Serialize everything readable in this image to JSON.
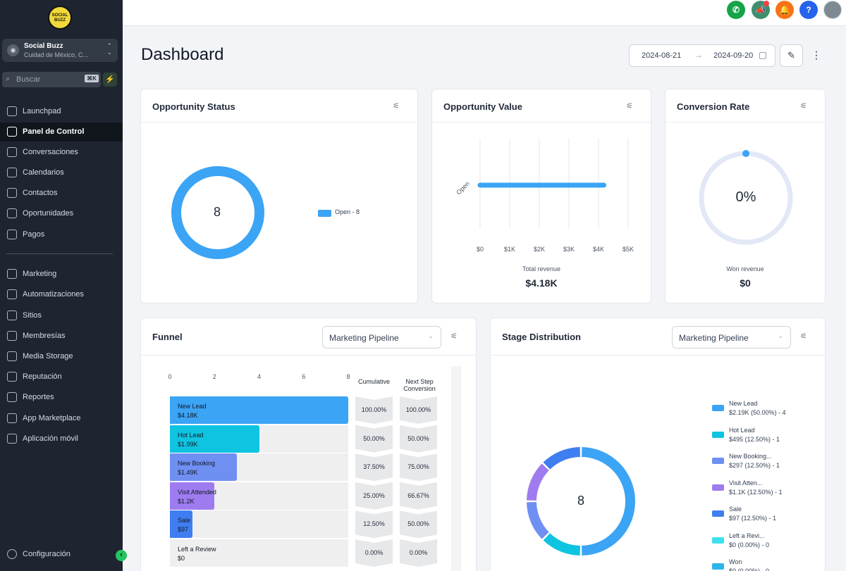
{
  "sidebar": {
    "logo_text": "SOCIAL BUZZ",
    "account": {
      "name": "Social Buzz",
      "location": "Cuidad de México, C..."
    },
    "search": {
      "placeholder": "Buscar",
      "shortcut": "⌘K"
    },
    "items": [
      {
        "label": "Launchpad",
        "icon": "rocket-icon"
      },
      {
        "label": "Panel de Control",
        "icon": "grid-icon",
        "active": true
      },
      {
        "label": "Conversaciones",
        "icon": "chat-icon"
      },
      {
        "label": "Calendarios",
        "icon": "calendar-icon"
      },
      {
        "label": "Contactos",
        "icon": "contacts-icon"
      },
      {
        "label": "Oportunidades",
        "icon": "opportunities-icon"
      },
      {
        "label": "Pagos",
        "icon": "payments-icon"
      },
      {
        "label": "Marketing",
        "icon": "send-icon"
      },
      {
        "label": "Automatizaciones",
        "icon": "automation-icon"
      },
      {
        "label": "Sitios",
        "icon": "sites-icon"
      },
      {
        "label": "Membresías",
        "icon": "membership-icon"
      },
      {
        "label": "Media Storage",
        "icon": "image-icon"
      },
      {
        "label": "Reputación",
        "icon": "star-icon"
      },
      {
        "label": "Reportes",
        "icon": "trend-icon"
      },
      {
        "label": "App Marketplace",
        "icon": "apps-icon"
      },
      {
        "label": "Aplicación móvil",
        "icon": "mobile-icon"
      }
    ],
    "settings_label": "Configuración"
  },
  "topbar": {
    "icons": [
      {
        "name": "phone-icon",
        "color": "#16a34a",
        "glyph": "✆"
      },
      {
        "name": "megaphone-icon",
        "color": "#3f8f6e",
        "glyph": "📣"
      },
      {
        "name": "bell-icon",
        "color": "#f97316",
        "glyph": "🔔"
      },
      {
        "name": "help-icon",
        "color": "#2563eb",
        "glyph": "?"
      }
    ]
  },
  "page": {
    "title": "Dashboard",
    "date_start": "2024-08-21",
    "date_end": "2024-09-20"
  },
  "opportunity_status": {
    "title": "Opportunity Status",
    "center_value": "8",
    "legend": "Open - 8",
    "color": "#3ba4f5"
  },
  "opportunity_value": {
    "title": "Opportunity Value",
    "category": "Open",
    "ticks": [
      "$0",
      "$1K",
      "$2K",
      "$3K",
      "$4K",
      "$5K"
    ],
    "caption": "Total revenue",
    "total": "$4.18K"
  },
  "conversion_rate": {
    "title": "Conversion Rate",
    "center_value": "0%",
    "caption": "Won revenue",
    "total": "$0"
  },
  "funnel": {
    "title": "Funnel",
    "pipeline": "Marketing Pipeline",
    "axis_ticks": [
      "0",
      "2",
      "4",
      "6",
      "8"
    ],
    "col_cumulative": "Cumulative",
    "col_next_line1": "Next Step",
    "col_next_line2": "Conversion",
    "rows": [
      {
        "name": "New Lead",
        "value": "$4.18K",
        "count": 8,
        "color": "#3ba4f5",
        "cumulative": "100.00%",
        "next": "100.00%"
      },
      {
        "name": "Hot Lead",
        "value": "$1.99K",
        "count": 4,
        "color": "#0fc4e0",
        "cumulative": "50.00%",
        "next": "50.00%"
      },
      {
        "name": "New Booking",
        "value": "$1.49K",
        "count": 3,
        "color": "#6f8ff2",
        "cumulative": "37.50%",
        "next": "75.00%"
      },
      {
        "name": "Visit Attended",
        "value": "$1.2K",
        "count": 2,
        "color": "#9e7cf0",
        "cumulative": "25.00%",
        "next": "66.67%"
      },
      {
        "name": "Sale",
        "value": "$97",
        "count": 1,
        "color": "#3f7ef0",
        "cumulative": "12.50%",
        "next": "50.00%"
      },
      {
        "name": "Left a Review",
        "value": "$0",
        "count": 0,
        "color": "#3ee0ee",
        "cumulative": "0.00%",
        "next": "0.00%"
      }
    ]
  },
  "stage_distribution": {
    "title": "Stage Distribution",
    "pipeline": "Marketing Pipeline",
    "center_value": "8",
    "legend": [
      {
        "name": "New Lead",
        "detail": "$2.19K (50.00%) - 4",
        "color": "#3ba4f5"
      },
      {
        "name": "Hot Lead",
        "detail": "$495 (12.50%) - 1",
        "color": "#0fc4e0"
      },
      {
        "name": "New Booking...",
        "detail": "$297 (12.50%) - 1",
        "color": "#6f8ff2"
      },
      {
        "name": "Visit Atten...",
        "detail": "$1.1K (12.50%) - 1",
        "color": "#9e7cf0"
      },
      {
        "name": "Sale",
        "detail": "$97 (12.50%) - 1",
        "color": "#3f7ef0"
      },
      {
        "name": "Left a Revi...",
        "detail": "$0 (0.00%) - 0",
        "color": "#3ee0ee"
      },
      {
        "name": "Won",
        "detail": "$0 (0.00%) - 0",
        "color": "#2bb6e8"
      }
    ]
  },
  "chart_data": [
    {
      "type": "pie",
      "title": "Opportunity Status",
      "labels": [
        "Open"
      ],
      "values": [
        8
      ]
    },
    {
      "type": "bar",
      "title": "Opportunity Value",
      "categories": [
        "Open"
      ],
      "values": [
        4180
      ],
      "xlim": [
        0,
        5000
      ],
      "xlabel": "Total revenue"
    },
    {
      "type": "bar",
      "title": "Funnel",
      "categories": [
        "New Lead",
        "Hot Lead",
        "New Booking",
        "Visit Attended",
        "Sale",
        "Left a Review"
      ],
      "values": [
        8,
        4,
        3,
        2,
        1,
        0
      ],
      "xlim": [
        0,
        8
      ]
    },
    {
      "type": "pie",
      "title": "Stage Distribution",
      "labels": [
        "New Lead",
        "Hot Lead",
        "New Booking...",
        "Visit Atten...",
        "Sale",
        "Left a Revi...",
        "Won"
      ],
      "values": [
        4,
        1,
        1,
        1,
        1,
        0,
        0
      ]
    }
  ]
}
